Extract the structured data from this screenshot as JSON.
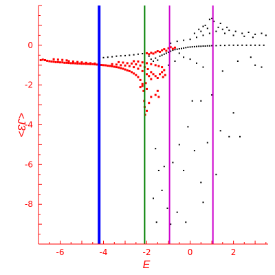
{
  "chart_data": {
    "type": "scatter",
    "xlabel": "E",
    "ylabel": "<J3>",
    "xlim": [
      -7,
      3.6
    ],
    "ylim": [
      -10,
      2
    ],
    "x_ticks": [
      "-6",
      "-4",
      "-2",
      "0",
      "2"
    ],
    "x_tick_values": [
      -6,
      -4,
      -2,
      0,
      2
    ],
    "y_ticks": [
      "0",
      "-2",
      "-4",
      "-6",
      "-8"
    ],
    "y_tick_values": [
      0,
      -2,
      -4,
      -6,
      -8
    ],
    "grid": false,
    "legend": "none",
    "colors": {
      "axes": "#ff0000",
      "tick_labels": "#ff0000",
      "series_red": "#ff0000",
      "series_black": "#000000",
      "line_blue": "#0000ff",
      "line_green": "#008000",
      "line_magenta": "#cc00cc"
    },
    "vertical_lines": [
      {
        "x": -4.2,
        "color": "#0000ff",
        "width": "thick"
      },
      {
        "x": -2.1,
        "color": "#008000",
        "width": "normal"
      },
      {
        "x": -0.95,
        "color": "#cc00cc",
        "width": "normal"
      },
      {
        "x": 1.05,
        "color": "#cc00cc",
        "width": "normal"
      }
    ],
    "series": [
      {
        "color": "#ff0000",
        "points": [
          [
            -6.9,
            -0.75
          ],
          [
            -6.8,
            -0.72
          ],
          [
            -6.7,
            -0.75
          ],
          [
            -6.6,
            -0.78
          ],
          [
            -6.5,
            -0.8
          ],
          [
            -6.4,
            -0.82
          ],
          [
            -6.3,
            -0.83
          ],
          [
            -6.2,
            -0.85
          ],
          [
            -6.1,
            -0.85
          ],
          [
            -6.0,
            -0.86
          ],
          [
            -5.9,
            -0.86
          ],
          [
            -5.8,
            -0.88
          ],
          [
            -5.7,
            -0.88
          ],
          [
            -5.6,
            -0.89
          ],
          [
            -5.5,
            -0.9
          ],
          [
            -5.4,
            -0.9
          ],
          [
            -5.3,
            -0.91
          ],
          [
            -5.2,
            -0.92
          ],
          [
            -5.1,
            -0.92
          ],
          [
            -5.0,
            -0.93
          ],
          [
            -4.9,
            -0.93
          ],
          [
            -4.8,
            -0.94
          ],
          [
            -4.7,
            -0.94
          ],
          [
            -4.6,
            -0.95
          ],
          [
            -4.5,
            -0.95
          ],
          [
            -4.4,
            -0.96
          ],
          [
            -4.3,
            -0.97
          ],
          [
            -4.2,
            -0.98
          ],
          [
            -4.1,
            -0.99
          ],
          [
            -4.0,
            -1.0
          ],
          [
            -3.9,
            -1.01
          ],
          [
            -3.8,
            -1.03
          ],
          [
            -3.7,
            -1.04
          ],
          [
            -3.6,
            -1.06
          ],
          [
            -3.5,
            -1.08
          ],
          [
            -3.4,
            -1.1
          ],
          [
            -3.3,
            -1.12
          ],
          [
            -3.2,
            -1.15
          ],
          [
            -3.1,
            -1.18
          ],
          [
            -3.0,
            -1.22
          ],
          [
            -2.9,
            -1.26
          ],
          [
            -2.8,
            -1.3
          ],
          [
            -2.7,
            -1.35
          ],
          [
            -2.6,
            -1.42
          ],
          [
            -2.5,
            -1.5
          ],
          [
            -2.4,
            -1.6
          ],
          [
            -2.3,
            -1.75
          ],
          [
            -2.2,
            -1.95
          ],
          [
            -2.15,
            -2.3
          ],
          [
            -2.12,
            -2.8
          ],
          [
            -2.1,
            -3.1
          ],
          [
            -2.08,
            -3.5
          ],
          [
            -5.6,
            -0.8
          ],
          [
            -5.4,
            -0.82
          ],
          [
            -5.2,
            -0.84
          ],
          [
            -5.0,
            -0.86
          ],
          [
            -4.8,
            -0.88
          ],
          [
            -4.6,
            -0.9
          ],
          [
            -4.4,
            -0.92
          ],
          [
            -4.2,
            -0.95
          ],
          [
            -6.3,
            -0.7
          ],
          [
            -6.1,
            -0.72
          ],
          [
            -5.9,
            -0.74
          ],
          [
            -5.7,
            -0.76
          ],
          [
            -3.6,
            -0.95
          ],
          [
            -3.4,
            -0.97
          ],
          [
            -3.2,
            -1.0
          ],
          [
            -3.0,
            -1.02
          ],
          [
            -2.8,
            -1.05
          ],
          [
            -2.6,
            -1.1
          ],
          [
            -2.4,
            -1.18
          ],
          [
            -2.2,
            -1.3
          ],
          [
            -2.0,
            -1.45
          ],
          [
            -1.9,
            -1.55
          ],
          [
            -1.8,
            -1.7
          ],
          [
            -3.3,
            -0.85
          ],
          [
            -3.1,
            -0.87
          ],
          [
            -2.9,
            -0.9
          ],
          [
            -2.7,
            -0.92
          ],
          [
            -2.5,
            -0.96
          ],
          [
            -2.3,
            -1.02
          ],
          [
            -2.1,
            -1.1
          ],
          [
            -1.95,
            -1.2
          ],
          [
            -1.8,
            -1.35
          ],
          [
            -1.7,
            -1.45
          ],
          [
            -1.6,
            -1.55
          ],
          [
            -1.5,
            -1.65
          ],
          [
            -1.4,
            -1.45
          ],
          [
            -1.3,
            -1.35
          ],
          [
            -1.2,
            -1.25
          ],
          [
            -2.6,
            -0.8
          ],
          [
            -2.4,
            -0.82
          ],
          [
            -2.2,
            -0.86
          ],
          [
            -2.0,
            -0.9
          ],
          [
            -1.8,
            -0.95
          ],
          [
            -1.6,
            -1.0
          ],
          [
            -1.45,
            -1.05
          ],
          [
            -1.3,
            -1.1
          ],
          [
            -2.0,
            -0.4
          ],
          [
            -1.9,
            -0.45
          ],
          [
            -1.8,
            -0.38
          ],
          [
            -1.7,
            -0.42
          ],
          [
            -1.6,
            -0.35
          ],
          [
            -1.5,
            -0.3
          ],
          [
            -1.4,
            -0.33
          ],
          [
            -1.3,
            -0.25
          ],
          [
            -1.2,
            -0.2
          ],
          [
            -1.1,
            -0.28
          ],
          [
            -1.0,
            -0.15
          ],
          [
            -0.9,
            -0.1
          ],
          [
            -0.8,
            -0.18
          ],
          [
            -0.7,
            -0.12
          ],
          [
            -2.05,
            -1.9
          ],
          [
            -2.0,
            -2.2
          ],
          [
            -1.6,
            -2.5
          ],
          [
            -1.5,
            -2.3
          ],
          [
            -1.8,
            -2.6
          ],
          [
            -1.45,
            -2.6
          ],
          [
            -2.0,
            -3.3
          ],
          [
            -1.9,
            -2.9
          ],
          [
            -2.3,
            -2.1
          ],
          [
            -2.2,
            -2.05
          ],
          [
            -1.25,
            -1.6
          ],
          [
            -1.15,
            -1.5
          ]
        ]
      },
      {
        "color": "#000000",
        "points": [
          [
            -4.2,
            -0.6
          ],
          [
            -4.0,
            -0.62
          ],
          [
            -3.8,
            -0.6
          ],
          [
            -3.6,
            -0.58
          ],
          [
            -3.4,
            -0.55
          ],
          [
            -3.2,
            -0.53
          ],
          [
            -3.0,
            -0.52
          ],
          [
            -2.8,
            -0.5
          ],
          [
            -2.6,
            -0.48
          ],
          [
            -2.4,
            -0.45
          ],
          [
            -2.2,
            -0.42
          ],
          [
            -2.0,
            -0.4
          ],
          [
            -1.9,
            -0.55
          ],
          [
            -1.8,
            -0.7
          ],
          [
            -1.7,
            -0.8
          ],
          [
            -1.6,
            -0.65
          ],
          [
            -1.5,
            -0.75
          ],
          [
            -1.4,
            -0.55
          ],
          [
            -1.3,
            -0.5
          ],
          [
            -1.2,
            -0.45
          ],
          [
            -1.1,
            -0.4
          ],
          [
            -1.0,
            -0.35
          ],
          [
            -0.9,
            -0.3
          ],
          [
            -0.8,
            -0.25
          ],
          [
            -0.7,
            -0.22
          ],
          [
            -0.6,
            -0.2
          ],
          [
            -0.5,
            -0.18
          ],
          [
            -0.4,
            -0.16
          ],
          [
            -0.3,
            -0.14
          ],
          [
            -0.2,
            -0.12
          ],
          [
            -0.1,
            -0.1
          ],
          [
            0.0,
            -0.09
          ],
          [
            0.1,
            -0.08
          ],
          [
            0.2,
            -0.07
          ],
          [
            0.3,
            -0.06
          ],
          [
            0.4,
            -0.05
          ],
          [
            0.5,
            -0.05
          ],
          [
            0.6,
            -0.04
          ],
          [
            0.7,
            -0.04
          ],
          [
            0.8,
            -0.03
          ],
          [
            0.9,
            -0.03
          ],
          [
            1.0,
            -0.02
          ],
          [
            1.2,
            -0.02
          ],
          [
            1.4,
            -0.01
          ],
          [
            1.6,
            -0.01
          ],
          [
            1.8,
            0.0
          ],
          [
            2.0,
            0.0
          ],
          [
            2.2,
            0.0
          ],
          [
            2.4,
            0.0
          ],
          [
            2.6,
            0.0
          ],
          [
            2.8,
            0.0
          ],
          [
            3.0,
            0.0
          ],
          [
            3.2,
            0.0
          ],
          [
            3.4,
            0.0
          ],
          [
            -0.9,
            0.1
          ],
          [
            -0.6,
            0.2
          ],
          [
            -0.3,
            0.25
          ],
          [
            0.0,
            0.3
          ],
          [
            0.3,
            0.4
          ],
          [
            0.6,
            0.5
          ],
          [
            0.9,
            0.6
          ],
          [
            1.2,
            0.7
          ],
          [
            1.5,
            0.8
          ],
          [
            1.8,
            0.75
          ],
          [
            2.1,
            0.7
          ],
          [
            2.4,
            0.6
          ],
          [
            2.7,
            0.65
          ],
          [
            3.0,
            0.55
          ],
          [
            3.3,
            0.6
          ],
          [
            3.5,
            0.5
          ],
          [
            0.4,
            0.8
          ],
          [
            0.7,
            1.0
          ],
          [
            0.9,
            1.3
          ],
          [
            1.1,
            1.2
          ],
          [
            1.3,
            0.9
          ],
          [
            1.0,
            1.35
          ],
          [
            0.6,
            0.95
          ],
          [
            1.6,
            0.6
          ],
          [
            0.2,
            0.6
          ],
          [
            0.5,
            0.7
          ],
          [
            0.8,
            0.85
          ],
          [
            1.4,
            1.1
          ],
          [
            1.7,
            0.9
          ],
          [
            2.0,
            0.5
          ],
          [
            2.5,
            0.45
          ],
          [
            2.9,
            0.4
          ],
          [
            -0.5,
            -0.4
          ],
          [
            -0.3,
            -0.6
          ],
          [
            0.0,
            -0.7
          ],
          [
            0.3,
            -0.9
          ],
          [
            0.6,
            -1.1
          ],
          [
            1.5,
            -1.3
          ],
          [
            2.2,
            -0.8
          ],
          [
            3.0,
            -1.0
          ],
          [
            3.3,
            -1.1
          ],
          [
            2.8,
            -0.6
          ],
          [
            -1.0,
            -1.0
          ],
          [
            -0.7,
            -0.8
          ],
          [
            -1.6,
            -5.2
          ],
          [
            -1.45,
            -6.3
          ],
          [
            -1.2,
            -6.1
          ],
          [
            -1.7,
            -7.7
          ],
          [
            -1.55,
            -8.9
          ],
          [
            -1.3,
            -7.3
          ],
          [
            -1.05,
            -8.2
          ],
          [
            -0.8,
            -5.9
          ],
          [
            -0.5,
            -5.0
          ],
          [
            -0.3,
            -6.3
          ],
          [
            -0.2,
            -8.9
          ],
          [
            -0.6,
            -8.4
          ],
          [
            -0.9,
            -9.0
          ],
          [
            -0.1,
            -4.1
          ],
          [
            0.2,
            -5.3
          ],
          [
            0.5,
            -6.9
          ],
          [
            0.6,
            -7.9
          ],
          [
            0.8,
            -4.9
          ],
          [
            1.2,
            -6.5
          ],
          [
            1.4,
            -4.3
          ],
          [
            1.8,
            -4.6
          ],
          [
            2.0,
            -3.4
          ],
          [
            2.3,
            -4.6
          ],
          [
            0.1,
            -2.8
          ],
          [
            0.5,
            -2.8
          ],
          [
            1.0,
            -2.5
          ]
        ]
      }
    ]
  }
}
